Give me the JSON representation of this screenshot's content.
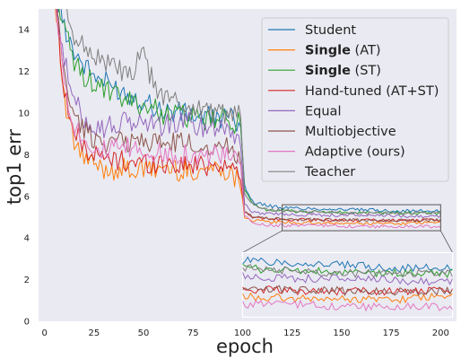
{
  "chart_data": {
    "type": "line",
    "xlabel": "epoch",
    "ylabel": "top1 err",
    "xlim": [
      -3,
      208
    ],
    "ylim": [
      0,
      15
    ],
    "xticks": [
      0,
      25,
      50,
      75,
      100,
      125,
      150,
      175,
      200
    ],
    "yticks": [
      0,
      2,
      4,
      6,
      8,
      10,
      12,
      14
    ],
    "grid": false,
    "background": "#eaeaf2",
    "legend_position": "upper right",
    "colors": {
      "Student": "#1f77b4",
      "Single (AT)": "#ff7f0e",
      "Single (ST)": "#2ca02c",
      "Hand-tuned (AT+ST)": "#d62728",
      "Equal": "#9467bd",
      "Multiobjective": "#8c564b",
      "Adaptive (ours)": "#e377c2",
      "Teacher": "#7f7f7f"
    },
    "series": [
      {
        "name": "Student",
        "legend_bold": "",
        "legend_rest": "Student",
        "x": [
          5,
          10,
          15,
          20,
          25,
          30,
          40,
          50,
          60,
          70,
          80,
          90,
          95,
          99,
          101,
          105,
          110,
          120,
          140,
          160,
          180,
          200
        ],
        "values": [
          16,
          14.2,
          13,
          12.3,
          11.8,
          11.5,
          11.0,
          10.6,
          10.1,
          10.0,
          9.8,
          9.8,
          9.7,
          9.6,
          6.5,
          5.75,
          5.6,
          5.45,
          5.4,
          5.35,
          5.3,
          5.3
        ]
      },
      {
        "name": "Single (AT)",
        "legend_bold": "Single",
        "legend_rest": " (AT)",
        "x": [
          5,
          10,
          15,
          20,
          25,
          30,
          40,
          50,
          60,
          70,
          80,
          90,
          95,
          99,
          101,
          105,
          110,
          120,
          140,
          160,
          180,
          200
        ],
        "values": [
          16,
          10.5,
          8.5,
          7.8,
          7.5,
          7.3,
          7.3,
          7.2,
          7.4,
          7.2,
          7.3,
          7.4,
          7.0,
          6.8,
          5.0,
          4.85,
          4.8,
          4.75,
          4.7,
          4.7,
          4.7,
          4.75
        ]
      },
      {
        "name": "Single (ST)",
        "legend_bold": "Single",
        "legend_rest": " (ST)",
        "x": [
          5,
          10,
          15,
          20,
          25,
          30,
          40,
          50,
          60,
          70,
          80,
          90,
          95,
          99,
          101,
          105,
          110,
          120,
          140,
          160,
          180,
          200
        ],
        "values": [
          16,
          14.0,
          12.4,
          11.8,
          11.4,
          11.1,
          10.6,
          10.4,
          10.0,
          9.9,
          9.6,
          9.7,
          9.6,
          9.5,
          6.3,
          5.6,
          5.4,
          5.3,
          5.25,
          5.2,
          5.2,
          5.2
        ]
      },
      {
        "name": "Hand-tuned (AT+ST)",
        "legend_bold": "",
        "legend_rest": "Hand-tuned (AT+ST)",
        "x": [
          5,
          10,
          15,
          20,
          25,
          30,
          40,
          50,
          60,
          70,
          80,
          90,
          95,
          99,
          101,
          105,
          110,
          120,
          140,
          160,
          180,
          200
        ],
        "values": [
          16,
          11.0,
          9.0,
          8.4,
          8.0,
          7.8,
          7.7,
          7.6,
          7.6,
          7.5,
          7.5,
          7.6,
          7.3,
          7.0,
          5.2,
          5.0,
          4.95,
          4.9,
          4.85,
          4.85,
          4.85,
          4.85
        ]
      },
      {
        "name": "Equal",
        "legend_bold": "",
        "legend_rest": "Equal",
        "x": [
          5,
          10,
          15,
          20,
          25,
          30,
          40,
          50,
          60,
          70,
          80,
          90,
          95,
          99,
          101,
          105,
          110,
          120,
          140,
          160,
          180,
          200
        ],
        "values": [
          16,
          12.5,
          10.5,
          9.8,
          9.4,
          9.3,
          9.5,
          9.6,
          9.4,
          9.6,
          9.3,
          9.5,
          9.0,
          8.8,
          5.6,
          5.25,
          5.2,
          5.15,
          5.1,
          5.1,
          5.05,
          5.05
        ]
      },
      {
        "name": "Multiobjective",
        "legend_bold": "",
        "legend_rest": "Multiobjective",
        "x": [
          5,
          10,
          15,
          20,
          25,
          30,
          40,
          50,
          60,
          70,
          80,
          90,
          95,
          99,
          101,
          105,
          110,
          120,
          140,
          160,
          180,
          200
        ],
        "values": [
          16,
          11.8,
          9.8,
          9.2,
          8.8,
          8.6,
          8.6,
          8.7,
          8.5,
          8.6,
          8.4,
          8.5,
          8.2,
          8.0,
          5.3,
          5.0,
          4.95,
          4.9,
          4.9,
          4.85,
          4.85,
          4.85
        ]
      },
      {
        "name": "Adaptive (ours)",
        "legend_bold": "",
        "legend_rest": "Adaptive (ours)",
        "x": [
          5,
          10,
          15,
          20,
          25,
          30,
          40,
          50,
          60,
          70,
          80,
          90,
          95,
          99,
          101,
          105,
          110,
          120,
          140,
          160,
          180,
          200
        ],
        "values": [
          16,
          11.5,
          9.4,
          8.8,
          8.4,
          8.2,
          8.3,
          8.2,
          8.0,
          8.1,
          7.9,
          8.0,
          7.7,
          7.6,
          5.1,
          4.7,
          4.65,
          4.6,
          4.6,
          4.55,
          4.55,
          4.55
        ]
      },
      {
        "name": "Teacher",
        "legend_bold": "",
        "legend_rest": "Teacher",
        "x": [
          5,
          10,
          15,
          20,
          25,
          30,
          35,
          40,
          45,
          48,
          50,
          55,
          60,
          65,
          70,
          80,
          90,
          95,
          99,
          101,
          105,
          110,
          120,
          140,
          160,
          180,
          200
        ],
        "values": [
          16,
          15.0,
          13.8,
          13.2,
          12.8,
          12.5,
          12.2,
          12.0,
          11.6,
          12.8,
          12.7,
          11.4,
          10.8,
          10.6,
          10.4,
          10.2,
          10.0,
          9.9,
          9.8,
          6.2,
          5.6,
          5.4,
          5.3,
          5.25,
          5.2,
          5.2,
          5.2
        ]
      }
    ],
    "inset": {
      "source_x": [
        120,
        200
      ],
      "source_y": [
        4.35,
        5.6
      ],
      "target_x": [
        100,
        206
      ],
      "target_y": [
        0.2,
        3.3
      ]
    }
  }
}
